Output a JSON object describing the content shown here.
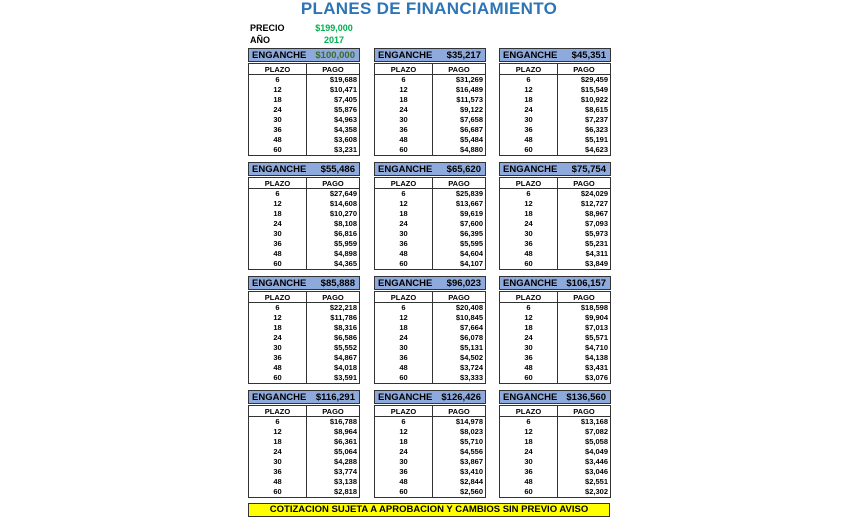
{
  "title": "PLANES DE FINANCIAMIENTO",
  "precio": {
    "label": "PRECIO",
    "value": "$199,000"
  },
  "anio": {
    "label": "AÑO",
    "value": "2017"
  },
  "colors": {
    "title": "#2E75B6",
    "highlight": "#00B050",
    "header_fill": "#8EA9DB",
    "footer_fill": "#FFFF00"
  },
  "enganche_label": "ENGANCHE",
  "col_plazo": "PLAZO",
  "col_pago": "PAGO",
  "plazos": [
    "6",
    "12",
    "18",
    "24",
    "30",
    "36",
    "48",
    "60"
  ],
  "blocks": [
    {
      "enganche": "$100,000",
      "pagos": [
        "$19,688",
        "$10,471",
        "$7,405",
        "$5,876",
        "$4,963",
        "$4,358",
        "$3,608",
        "$3,231"
      ]
    },
    {
      "enganche": "$35,217",
      "pagos": [
        "$31,269",
        "$16,489",
        "$11,573",
        "$9,122",
        "$7,658",
        "$6,687",
        "$5,484",
        "$4,880"
      ]
    },
    {
      "enganche": "$45,351",
      "pagos": [
        "$29,459",
        "$15,549",
        "$10,922",
        "$8,615",
        "$7,237",
        "$6,323",
        "$5,191",
        "$4,623"
      ]
    },
    {
      "enganche": "$55,486",
      "pagos": [
        "$27,649",
        "$14,608",
        "$10,270",
        "$8,108",
        "$6,816",
        "$5,959",
        "$4,898",
        "$4,365"
      ]
    },
    {
      "enganche": "$65,620",
      "pagos": [
        "$25,839",
        "$13,667",
        "$9,619",
        "$7,600",
        "$6,395",
        "$5,595",
        "$4,604",
        "$4,107"
      ]
    },
    {
      "enganche": "$75,754",
      "pagos": [
        "$24,029",
        "$12,727",
        "$8,967",
        "$7,093",
        "$5,973",
        "$5,231",
        "$4,311",
        "$3,849"
      ]
    },
    {
      "enganche": "$85,888",
      "pagos": [
        "$22,218",
        "$11,786",
        "$8,316",
        "$6,586",
        "$5,552",
        "$4,867",
        "$4,018",
        "$3,591"
      ]
    },
    {
      "enganche": "$96,023",
      "pagos": [
        "$20,408",
        "$10,845",
        "$7,664",
        "$6,078",
        "$5,131",
        "$4,502",
        "$3,724",
        "$3,333"
      ]
    },
    {
      "enganche": "$106,157",
      "pagos": [
        "$18,598",
        "$9,904",
        "$7,013",
        "$5,571",
        "$4,710",
        "$4,138",
        "$3,431",
        "$3,076"
      ]
    },
    {
      "enganche": "$116,291",
      "pagos": [
        "$16,788",
        "$8,964",
        "$6,361",
        "$5,064",
        "$4,288",
        "$3,774",
        "$3,138",
        "$2,818"
      ]
    },
    {
      "enganche": "$126,426",
      "pagos": [
        "$14,978",
        "$8,023",
        "$5,710",
        "$4,556",
        "$3,867",
        "$3,410",
        "$2,844",
        "$2,560"
      ]
    },
    {
      "enganche": "$136,560",
      "pagos": [
        "$13,168",
        "$7,082",
        "$5,058",
        "$4,049",
        "$3,446",
        "$3,046",
        "$2,551",
        "$2,302"
      ]
    }
  ],
  "footer": "COTIZACION SUJETA A APROBACION Y CAMBIOS SIN PREVIO AVISO"
}
